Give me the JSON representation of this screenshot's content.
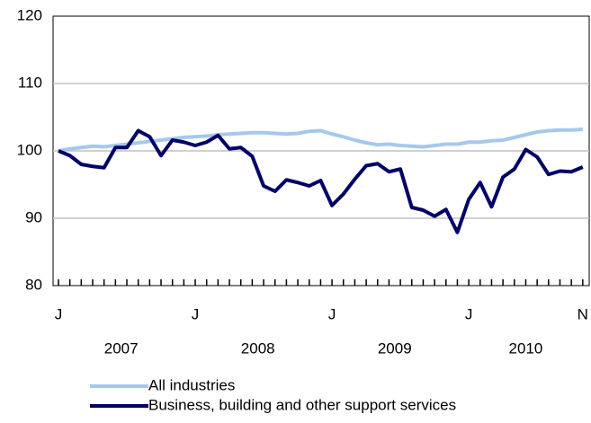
{
  "chart_data": {
    "type": "line",
    "categories": [
      "J",
      null,
      null,
      null,
      null,
      null,
      null,
      null,
      null,
      null,
      null,
      null,
      "J",
      null,
      null,
      null,
      null,
      null,
      null,
      null,
      null,
      null,
      null,
      null,
      "J",
      null,
      null,
      null,
      null,
      null,
      null,
      null,
      null,
      null,
      null,
      null,
      "J",
      null,
      null,
      null,
      null,
      null,
      null,
      null,
      null,
      null,
      "N"
    ],
    "years": [
      "2007",
      "2008",
      "2009",
      "2010"
    ],
    "ylim": [
      80,
      120
    ],
    "yticks": [
      80,
      90,
      100,
      110,
      120
    ],
    "grid": true,
    "series": [
      {
        "name": "All industries",
        "color": "#a6c8ec",
        "values": [
          100.0,
          100.3,
          100.5,
          100.7,
          100.6,
          100.8,
          101.0,
          101.2,
          101.4,
          101.6,
          101.8,
          102.0,
          102.1,
          102.2,
          102.4,
          102.5,
          102.6,
          102.7,
          102.7,
          102.6,
          102.5,
          102.6,
          102.9,
          103.0,
          102.5,
          102.1,
          101.6,
          101.2,
          100.9,
          101.0,
          100.8,
          100.7,
          100.6,
          100.8,
          101.0,
          101.0,
          101.3,
          101.3,
          101.5,
          101.6,
          102.0,
          102.4,
          102.8,
          103.0,
          103.1,
          103.1,
          103.2
        ]
      },
      {
        "name": "Business, building and other support services",
        "color": "#000066",
        "values": [
          100.0,
          99.3,
          98.0,
          97.7,
          97.5,
          100.5,
          100.5,
          103.0,
          102.1,
          99.3,
          101.6,
          101.3,
          100.8,
          101.3,
          102.3,
          100.3,
          100.5,
          99.2,
          94.8,
          94.0,
          95.7,
          95.3,
          94.8,
          95.6,
          91.9,
          93.6,
          95.8,
          97.8,
          98.1,
          96.9,
          97.3,
          91.6,
          91.2,
          90.3,
          91.3,
          87.9,
          92.8,
          95.3,
          91.7,
          96.1,
          97.3,
          100.2,
          99.1,
          96.5,
          97.0,
          96.9,
          97.6
        ]
      }
    ],
    "legend": "bottom"
  }
}
